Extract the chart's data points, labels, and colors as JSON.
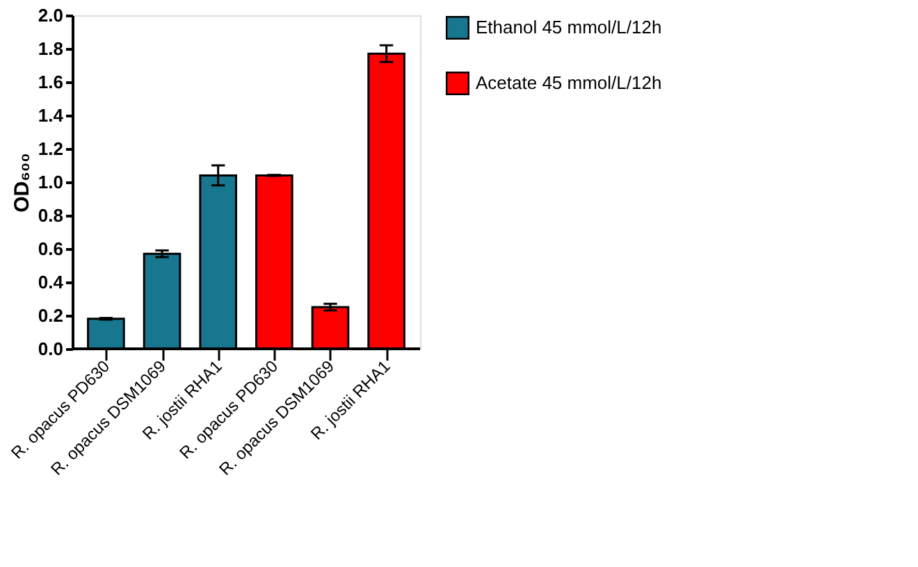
{
  "chart_data": {
    "type": "bar",
    "ylabel": "OD₆₀₀",
    "categories": [
      "R. opacus PD630",
      "R. opacus DSM1069",
      "R. jostii RHA1",
      "R. opacus PD630",
      "R. opacus DSM1069",
      "R. jostii RHA1"
    ],
    "series": [
      {
        "name": "Ethanol 45 mmol/L/12h",
        "color": "#17778f",
        "values": [
          0.18,
          0.57,
          1.04,
          null,
          null,
          null
        ],
        "errors": [
          0.005,
          0.02,
          0.06,
          null,
          null,
          null
        ]
      },
      {
        "name": "Acetate 45 mmol/L/12h",
        "color": "#ff0000",
        "values": [
          null,
          null,
          null,
          1.04,
          0.25,
          1.77
        ],
        "errors": [
          null,
          null,
          null,
          0.003,
          0.02,
          0.05
        ]
      }
    ],
    "ylim": [
      0,
      2.0
    ],
    "yticks": [
      {
        "value": 0,
        "label": "0.0"
      },
      {
        "value": 0.2,
        "label": "0.2"
      },
      {
        "value": 0.4,
        "label": "0.4"
      },
      {
        "value": 0.6,
        "label": "0.6"
      },
      {
        "value": 0.8,
        "label": "0.8"
      },
      {
        "value": 1.0,
        "label": "1.0"
      },
      {
        "value": 1.2,
        "label": "1.2"
      },
      {
        "value": 1.4,
        "label": "1.4"
      },
      {
        "value": 1.6,
        "label": "1.6"
      },
      {
        "value": 1.8,
        "label": "1.8"
      },
      {
        "value": 2.0,
        "label": "2.0"
      }
    ],
    "grid": false,
    "legend": "right"
  }
}
